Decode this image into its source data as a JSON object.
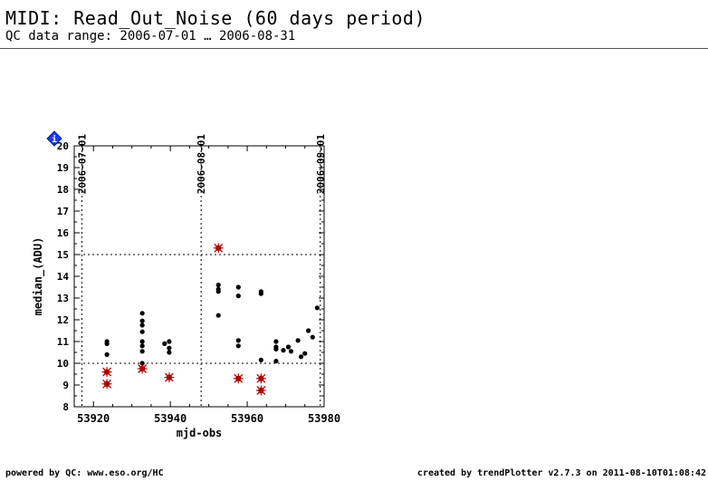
{
  "header": {
    "title": "MIDI: Read_Out_Noise (60 days period)",
    "subtitle": "QC data range: 2006-07-01 … 2006-08-31"
  },
  "footer": {
    "left": "powered by QC: www.eso.org/HC",
    "right": "created by trendPlotter v2.7.3 on 2011-08-10T01:08:42"
  },
  "chart_data": {
    "type": "scatter",
    "xlabel": "mjd-obs",
    "ylabel": "median_(ADU)",
    "xlim": [
      53915,
      53980
    ],
    "ylim": [
      8,
      20
    ],
    "xticks": [
      53920,
      53940,
      53960,
      53980
    ],
    "yticks": [
      8,
      9,
      10,
      11,
      12,
      13,
      14,
      15,
      16,
      17,
      18,
      19,
      20
    ],
    "date_markers": [
      {
        "label": "2006-07-01",
        "x": 53917
      },
      {
        "label": "2006-08-01",
        "x": 53948
      },
      {
        "label": "2006-09-01",
        "x": 53979
      }
    ],
    "reference_lines_y": [
      10,
      15
    ],
    "info_badge": "i",
    "colors": {
      "normal": "#000000",
      "outlier": "#b00000",
      "info_badge": "#1e3cff"
    },
    "series": [
      {
        "kind": "normal",
        "points": [
          [
            53923.5,
            11.0
          ],
          [
            53923.5,
            10.9
          ],
          [
            53923.5,
            10.4
          ],
          [
            53932.7,
            12.3
          ],
          [
            53932.7,
            11.95
          ],
          [
            53932.7,
            11.75
          ],
          [
            53932.7,
            11.45
          ],
          [
            53932.7,
            11.0
          ],
          [
            53932.7,
            10.8
          ],
          [
            53932.7,
            10.55
          ],
          [
            53932.7,
            10.0
          ],
          [
            53938.5,
            10.9
          ],
          [
            53939.7,
            11.0
          ],
          [
            53939.7,
            10.7
          ],
          [
            53939.7,
            10.5
          ],
          [
            53952.5,
            13.6
          ],
          [
            53952.5,
            13.4
          ],
          [
            53952.5,
            13.3
          ],
          [
            53952.5,
            12.2
          ],
          [
            53957.7,
            13.5
          ],
          [
            53957.7,
            13.1
          ],
          [
            53957.7,
            11.05
          ],
          [
            53957.7,
            10.8
          ],
          [
            53963.6,
            13.3
          ],
          [
            53963.6,
            13.2
          ],
          [
            53963.6,
            10.15
          ],
          [
            53967.5,
            11.0
          ],
          [
            53967.5,
            10.75
          ],
          [
            53967.5,
            10.65
          ],
          [
            53967.5,
            10.1
          ],
          [
            53969.4,
            10.6
          ],
          [
            53970.7,
            10.75
          ],
          [
            53971.4,
            10.55
          ],
          [
            53973.2,
            11.05
          ],
          [
            53974.0,
            10.3
          ],
          [
            53975.0,
            10.45
          ],
          [
            53975.9,
            11.5
          ],
          [
            53977.0,
            11.2
          ],
          [
            53978.2,
            12.55
          ]
        ]
      },
      {
        "kind": "outlier",
        "points": [
          [
            53923.5,
            9.6
          ],
          [
            53923.5,
            9.05
          ],
          [
            53932.7,
            9.75
          ],
          [
            53939.7,
            9.35
          ],
          [
            53952.5,
            15.3
          ],
          [
            53957.7,
            9.3
          ],
          [
            53963.6,
            9.3
          ],
          [
            53963.6,
            8.75
          ]
        ]
      }
    ]
  }
}
